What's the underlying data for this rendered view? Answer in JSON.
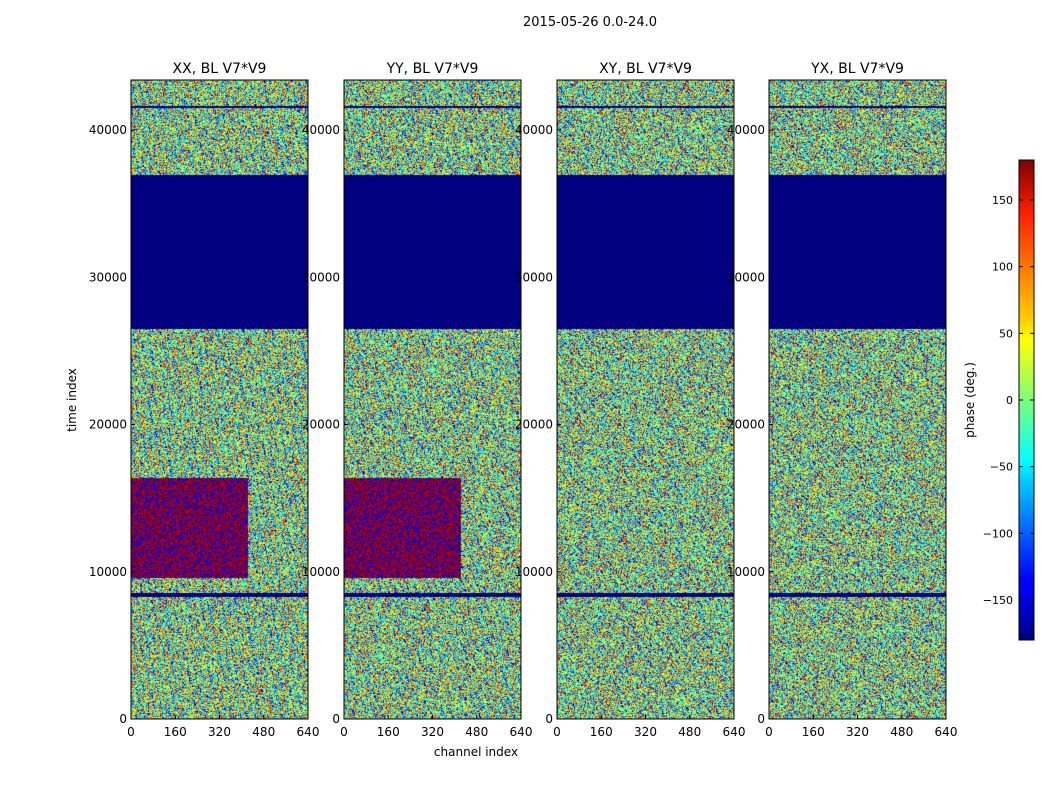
{
  "chart_data": {
    "type": "heatmap",
    "suptitle": "2015-05-26 0.0-24.0",
    "xlabel": "channel index",
    "ylabel": "time index",
    "xlim": [
      0,
      640
    ],
    "ylim": [
      0,
      43400
    ],
    "x_ticks": [
      0,
      160,
      320,
      480,
      640
    ],
    "y_ticks": [
      0,
      10000,
      20000,
      30000,
      40000
    ],
    "panels": [
      {
        "title": "XX, BL V7*V9",
        "ylabel": "time index",
        "pol": "XX"
      },
      {
        "title": "YY, BL V7*V9",
        "ylabel": "",
        "pol": "YY"
      },
      {
        "title": "XY, BL V7*V9",
        "ylabel": "",
        "pol": "XY"
      },
      {
        "title": "YX, BL V7*V9",
        "ylabel": "",
        "pol": "YX"
      }
    ],
    "colorbar": {
      "label": "phase (deg.)",
      "range": [
        -180,
        180
      ],
      "ticks": [
        -150,
        -100,
        -50,
        0,
        50,
        100,
        150
      ],
      "colormap": "jet"
    },
    "flagged_time_ranges": [
      [
        26500,
        37000
      ],
      [
        41500,
        41700
      ],
      [
        8300,
        8600
      ]
    ]
  },
  "colors": {
    "flag_blue": "#00007f",
    "axis": "#000000"
  }
}
